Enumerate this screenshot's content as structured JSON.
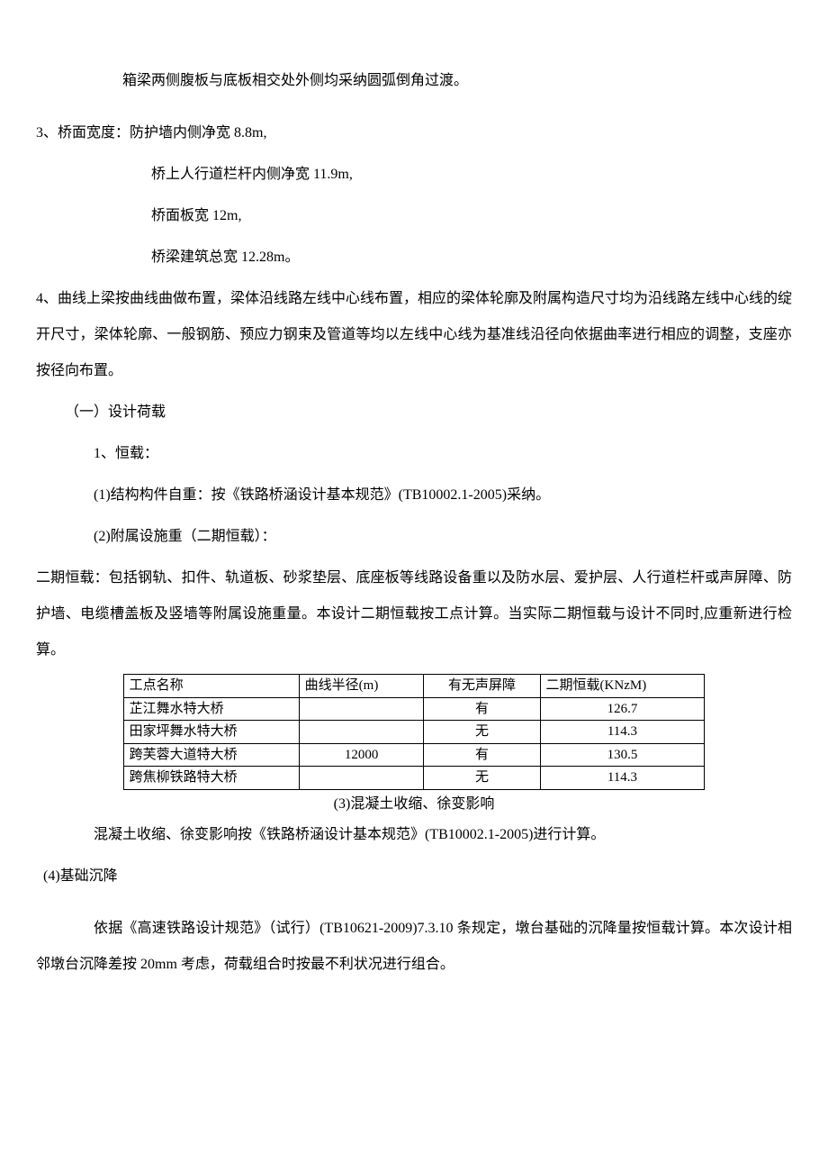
{
  "p1": "箱梁两侧腹板与底板相交处外侧均采纳圆弧倒角过渡。",
  "p2": "3、桥面宽度：防护墙内侧净宽 8.8m,",
  "p3": "桥上人行道栏杆内侧净宽 11.9m,",
  "p4": "桥面板宽 12m,",
  "p5": "桥梁建筑总宽 12.28m。",
  "p6": "4、曲线上梁按曲线曲做布置，梁体沿线路左线中心线布置，相应的梁体轮廓及附属构造尺寸均为沿线路左线中心线的绽开尺寸，梁体轮廓、一般钢筋、预应力钢束及管道等均以左线中心线为基准线沿径向依据曲率进行相应的调整，支座亦按径向布置。",
  "p7": "（一）设计荷载",
  "p8": "1、恒载：",
  "p9": "(1)结构构件自重：按《铁路桥涵设计基本规范》(TB10002.1-2005)采纳。",
  "p10": "(2)附属设施重（二期恒载）：",
  "p11": "二期恒载：包括钢轨、扣件、轨道板、砂浆垫层、底座板等线路设备重以及防水层、爱护层、人行道栏杆或声屏障、防护墙、电缆槽盖板及竖墙等附属设施重量。本设计二期恒载按工点计算。当实际二期恒载与设计不同时,应重新进行检算。",
  "table": {
    "headers": [
      "工点名称",
      "曲线半径(m)",
      "有无声屏障",
      "二期恒载(KNzM)"
    ],
    "rows": [
      [
        "芷江舞水特大桥",
        "",
        "有",
        "126.7"
      ],
      [
        "田家坪舞水特大桥",
        "",
        "无",
        "114.3"
      ],
      [
        "跨芙蓉大道特大桥",
        "12000",
        "有",
        "130.5"
      ],
      [
        "跨焦柳铁路特大桥",
        "",
        "无",
        "114.3"
      ]
    ]
  },
  "p12": "(3)混凝土收缩、徐变影响",
  "p13": "混凝土收缩、徐变影响按《铁路桥涵设计基本规范》(TB10002.1-2005)进行计算。",
  "p14": "(4)基础沉降",
  "p15": "依据《高速铁路设计规范》（试行）(TB10621-2009)7.3.10 条规定，墩台基础的沉降量按恒载计算。本次设计相邻墩台沉降差按 20mm 考虑，荷载组合时按最不利状况进行组合。"
}
